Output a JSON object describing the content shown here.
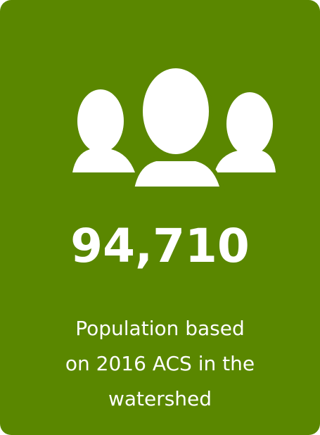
{
  "stat": {
    "value": "94,710",
    "description": [
      "Population based",
      "on 2016 ACS in the",
      "watershed"
    ]
  }
}
